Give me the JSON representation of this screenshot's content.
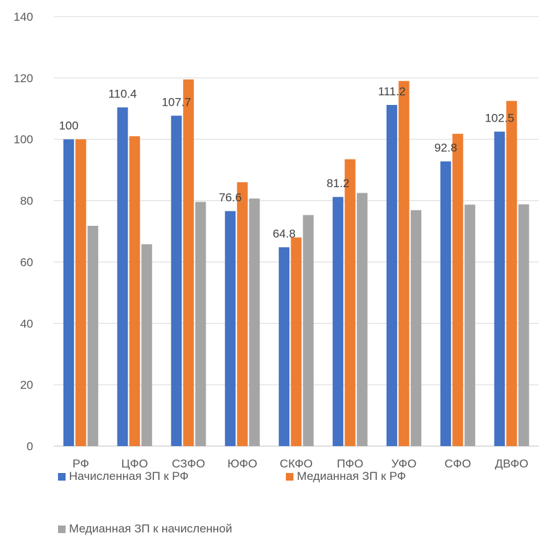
{
  "chart_data": {
    "type": "bar",
    "categories": [
      "РФ",
      "ЦФО",
      "СЗФО",
      "ЮФО",
      "СКФО",
      "ПФО",
      "УФО",
      "СФО",
      "ДВФО"
    ],
    "series": [
      {
        "name": "Начисленная ЗП к РФ",
        "color": "#4472C4",
        "values": [
          100,
          110.4,
          107.7,
          76.6,
          64.8,
          81.2,
          111.2,
          92.8,
          102.5
        ],
        "labels": [
          "100",
          "110.4",
          "107.7",
          "76.6",
          "64.8",
          "81.2",
          "111.2",
          "92.8",
          "102.5"
        ]
      },
      {
        "name": "Медианная ЗП к РФ",
        "color": "#ED7D31",
        "values": [
          100,
          101,
          119.5,
          86,
          68,
          93.5,
          119,
          101.8,
          112.5
        ]
      },
      {
        "name": "Медианная ЗП к начисленной",
        "color": "#A5A5A5",
        "values": [
          71.8,
          65.8,
          79.6,
          80.7,
          75.3,
          82.5,
          76.9,
          78.7,
          78.8
        ]
      }
    ],
    "yticks": [
      "0",
      "20",
      "40",
      "60",
      "80",
      "100",
      "120",
      "140"
    ],
    "ylim": [
      0,
      140
    ],
    "grid": true,
    "legend_position": "bottom"
  }
}
